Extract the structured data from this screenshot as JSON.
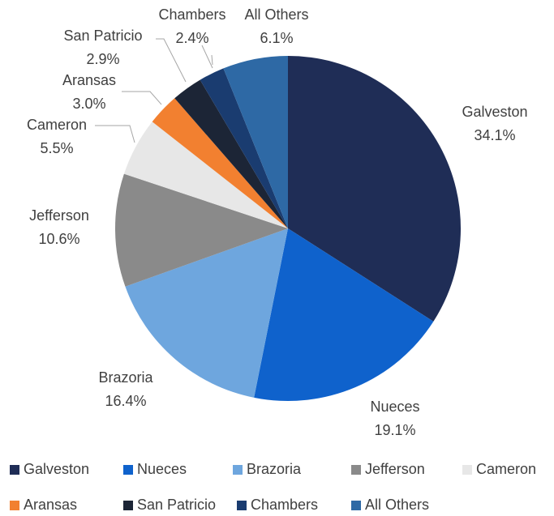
{
  "chart_data": {
    "type": "pie",
    "categories": [
      "Galveston",
      "Nueces",
      "Brazoria",
      "Jefferson",
      "Cameron",
      "Aransas",
      "San Patricio",
      "Chambers",
      "All Others"
    ],
    "values": [
      34.1,
      19.1,
      16.4,
      10.6,
      5.5,
      3.0,
      2.9,
      2.4,
      6.1
    ],
    "value_labels": [
      "34.1%",
      "19.1%",
      "16.4%",
      "10.6%",
      "5.5%",
      "3.0%",
      "2.9%",
      "2.4%",
      "6.1%"
    ],
    "colors": [
      "#1f2d56",
      "#0f62cc",
      "#6ea6de",
      "#8a8a8a",
      "#e7e7e7",
      "#f28030",
      "#1c2536",
      "#1a3c70",
      "#2e69a5"
    ],
    "legend": "bottom"
  }
}
